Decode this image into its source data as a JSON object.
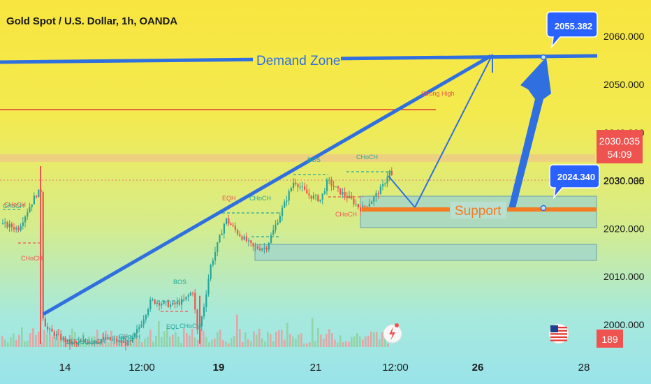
{
  "header": {
    "title": "Gold Spot / U.S. Dollar, 1h, OANDA"
  },
  "colors": {
    "blue": "#2f6fe0",
    "orange": "#f47b20",
    "up": "#26a69a",
    "down": "#ef5350",
    "red_line": "#e53935",
    "price_tag": "#2962ff",
    "current_tag": "#ef5350"
  },
  "chart_data": {
    "type": "candlestick",
    "symbol": "Gold Spot / U.S. Dollar",
    "interval": "1h",
    "source": "OANDA",
    "y_axis": {
      "ticks": [
        2000,
        2010,
        2020,
        2030,
        2040,
        2050,
        2060
      ],
      "tick_labels": [
        "2000.000",
        "2010.000",
        "2020.000",
        "2030.000",
        "2040.000",
        "2050.000",
        "2060.000"
      ]
    },
    "x_axis": {
      "tick_labels": [
        "14",
        "12:00",
        "19",
        "21",
        "12:00",
        "26",
        "28"
      ]
    },
    "current_price": "2030.035",
    "countdown": "54:09",
    "price_labels": [
      "2055.382",
      "2024.340"
    ],
    "badge": "189",
    "annotations": {
      "demand_zone": "Demand Zone",
      "support": "Support",
      "strong_high": "Strong High",
      "labels": [
        "CHoCH",
        "CHoCH",
        "CHoCH",
        "EQH",
        "CHoCH",
        "BOS",
        "CHoCH",
        "CHoCH",
        "BOS",
        "EQL",
        "CHoCH",
        "EQH",
        "CHoCH",
        "CHoCH",
        "BOS"
      ]
    }
  }
}
